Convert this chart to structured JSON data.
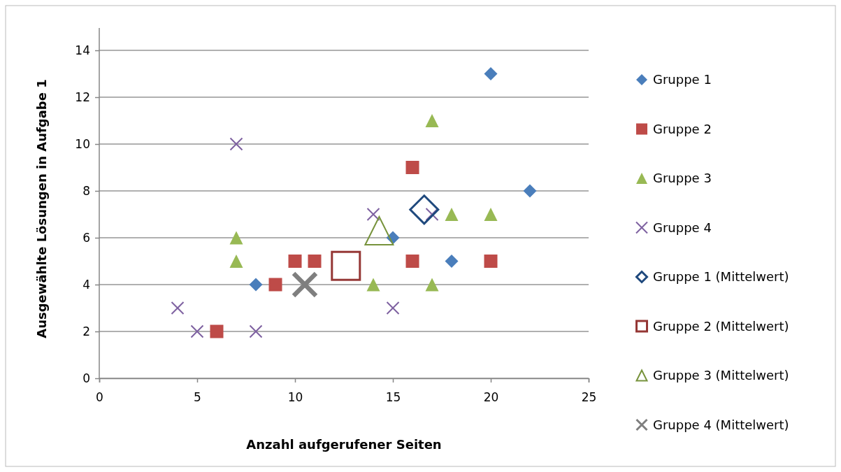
{
  "chart_data": {
    "type": "scatter",
    "xlabel": "Anzahl aufgerufener Seiten",
    "ylabel": "Ausgewählte Lösungen in Aufgabe 1",
    "xlim": [
      0,
      25
    ],
    "xticks": [
      0,
      5,
      10,
      15,
      20,
      25
    ],
    "ylim": [
      0,
      14
    ],
    "yticks": [
      0,
      2,
      4,
      6,
      8,
      10,
      12,
      14
    ],
    "grid": "y",
    "legend": "right",
    "series": [
      {
        "name": "Gruppe 1",
        "color": "#4a7ebb",
        "marker": "diamond",
        "x": [
          8,
          15,
          18,
          20,
          22
        ],
        "values": [
          4,
          6,
          5,
          13,
          8
        ]
      },
      {
        "name": "Gruppe 2",
        "color": "#be4b48",
        "marker": "square",
        "x": [
          6,
          9,
          10,
          11,
          16,
          16,
          20
        ],
        "values": [
          2,
          4,
          5,
          5,
          9,
          5,
          5
        ]
      },
      {
        "name": "Gruppe 3",
        "color": "#98b954",
        "marker": "triangle",
        "x": [
          7,
          7,
          14,
          17,
          17,
          18,
          20
        ],
        "values": [
          6,
          5,
          4,
          11,
          4,
          7,
          7
        ]
      },
      {
        "name": "Gruppe 4",
        "color": "#7d60a0",
        "marker": "cross",
        "x": [
          4,
          5,
          7,
          8,
          14,
          15,
          17
        ],
        "values": [
          3,
          2,
          10,
          2,
          7,
          3,
          7
        ]
      },
      {
        "name": "Gruppe 1 (Mittelwert)",
        "color": "#1f497d",
        "marker": "diamond",
        "x": [
          16.6
        ],
        "values": [
          7.2
        ]
      },
      {
        "name": "Gruppe 2 (Mittelwert)",
        "color": "#953735",
        "marker": "square",
        "x": [
          12.6
        ],
        "values": [
          4.8
        ]
      },
      {
        "name": "Gruppe 3 (Mittelwert)",
        "color": "#77933c",
        "marker": "triangle",
        "x": [
          14.3
        ],
        "values": [
          6.3
        ]
      },
      {
        "name": "Gruppe 4 (Mittelwert)",
        "color": "#7f7f7f",
        "marker": "cross",
        "x": [
          10.5
        ],
        "values": [
          4
        ]
      }
    ]
  }
}
